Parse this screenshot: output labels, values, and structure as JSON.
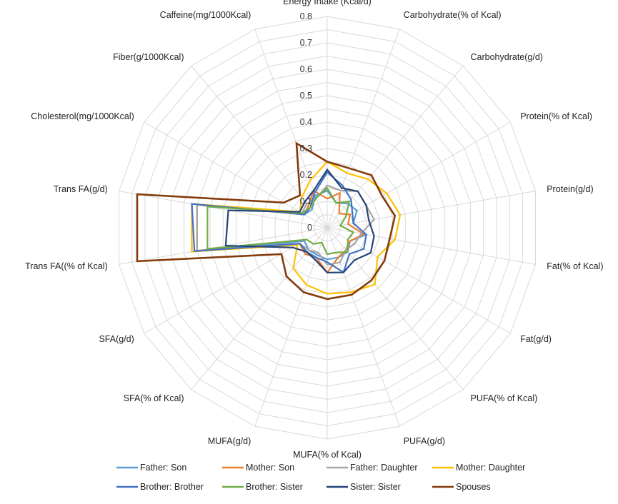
{
  "chart_data": {
    "type": "radar",
    "axes": [
      "Energy Intake (Kcal/d)",
      "Carbohydrate(% of Kcal)",
      "Carbohydrate(g/d)",
      "Protein(% of Kcal)",
      "Protein(g/d)",
      "Fat(% of Kcal)",
      "Fat(g/d)",
      "PUFA(% of Kcal)",
      "PUFA(g/d)",
      "MUFA(% of Kcal)",
      "MUFA(g/d)",
      "SFA(% of Kcal)",
      "SFA(g/d)",
      "Trans FA((% of Kcal)",
      "Trans FA(g/d)",
      "Cholesterol(mg/1000Kcal)",
      "Fiber(g/1000Kcal)",
      "Caffeine(mg/1000Kcal)"
    ],
    "rlim": [
      0,
      0.8
    ],
    "ticks": [
      0,
      0.1,
      0.2,
      0.3,
      0.4,
      0.5,
      0.6,
      0.7,
      0.8
    ],
    "tick_labels": [
      "0",
      "0.1",
      "0.2",
      "0.3",
      "0.4",
      "0.5",
      "0.6",
      "0.7",
      "0.8"
    ],
    "grid_step": 0.05,
    "legend_position": "bottom",
    "series": [
      {
        "name": "Father: Son",
        "color": "#5b9bd5",
        "values": [
          0.14,
          0.1,
          0.12,
          0.13,
          0.1,
          0.15,
          0.1,
          0.12,
          0.12,
          0.12,
          0.11,
          0.11,
          0.1,
          0.52,
          0.52,
          0.1,
          0.09,
          0.13
        ]
      },
      {
        "name": "Mother: Son",
        "color": "#ed7d31",
        "values": [
          0.11,
          0.14,
          0.07,
          0.1,
          0.08,
          0.14,
          0.1,
          0.11,
          0.12,
          0.17,
          0.12,
          0.13,
          0.12,
          0.5,
          0.5,
          0.1,
          0.11,
          0.15
        ]
      },
      {
        "name": "Father: Daughter",
        "color": "#a5a5a5",
        "values": [
          0.16,
          0.15,
          0.18,
          0.17,
          0.18,
          0.13,
          0.12,
          0.11,
          0.14,
          0.14,
          0.1,
          0.11,
          0.12,
          0.5,
          0.5,
          0.11,
          0.12,
          0.12
        ]
      },
      {
        "name": "Mother: Daughter",
        "color": "#ffc000",
        "values": [
          0.25,
          0.22,
          0.24,
          0.26,
          0.28,
          0.26,
          0.22,
          0.28,
          0.26,
          0.25,
          0.23,
          0.2,
          0.13,
          0.52,
          0.52,
          0.12,
          0.15,
          0.19
        ]
      },
      {
        "name": "Brother: Brother",
        "color": "#4472c4",
        "values": [
          0.21,
          0.17,
          0.14,
          0.11,
          0.1,
          0.15,
          0.16,
          0.13,
          0.18,
          0.13,
          0.12,
          0.12,
          0.12,
          0.51,
          0.52,
          0.1,
          0.1,
          0.14
        ]
      },
      {
        "name": "Brother: Sister",
        "color": "#70ad47",
        "values": [
          0.15,
          0.1,
          0.13,
          0.08,
          0.05,
          0.1,
          0.09,
          0.12,
          0.1,
          0.1,
          0.06,
          0.08,
          0.09,
          0.46,
          0.46,
          0.11,
          0.1,
          0.12
        ]
      },
      {
        "name": "Sister: Sister",
        "color": "#264478",
        "values": [
          0.22,
          0.16,
          0.18,
          0.17,
          0.16,
          0.18,
          0.19,
          0.16,
          0.18,
          0.17,
          0.13,
          0.12,
          0.15,
          0.39,
          0.38,
          0.12,
          0.13,
          0.15
        ]
      },
      {
        "name": "Spouses",
        "color": "#843c0c",
        "values": [
          0.25,
          0.24,
          0.26,
          0.24,
          0.26,
          0.24,
          0.25,
          0.26,
          0.27,
          0.27,
          0.26,
          0.24,
          0.2,
          0.73,
          0.73,
          0.19,
          0.16,
          0.34
        ]
      }
    ]
  }
}
